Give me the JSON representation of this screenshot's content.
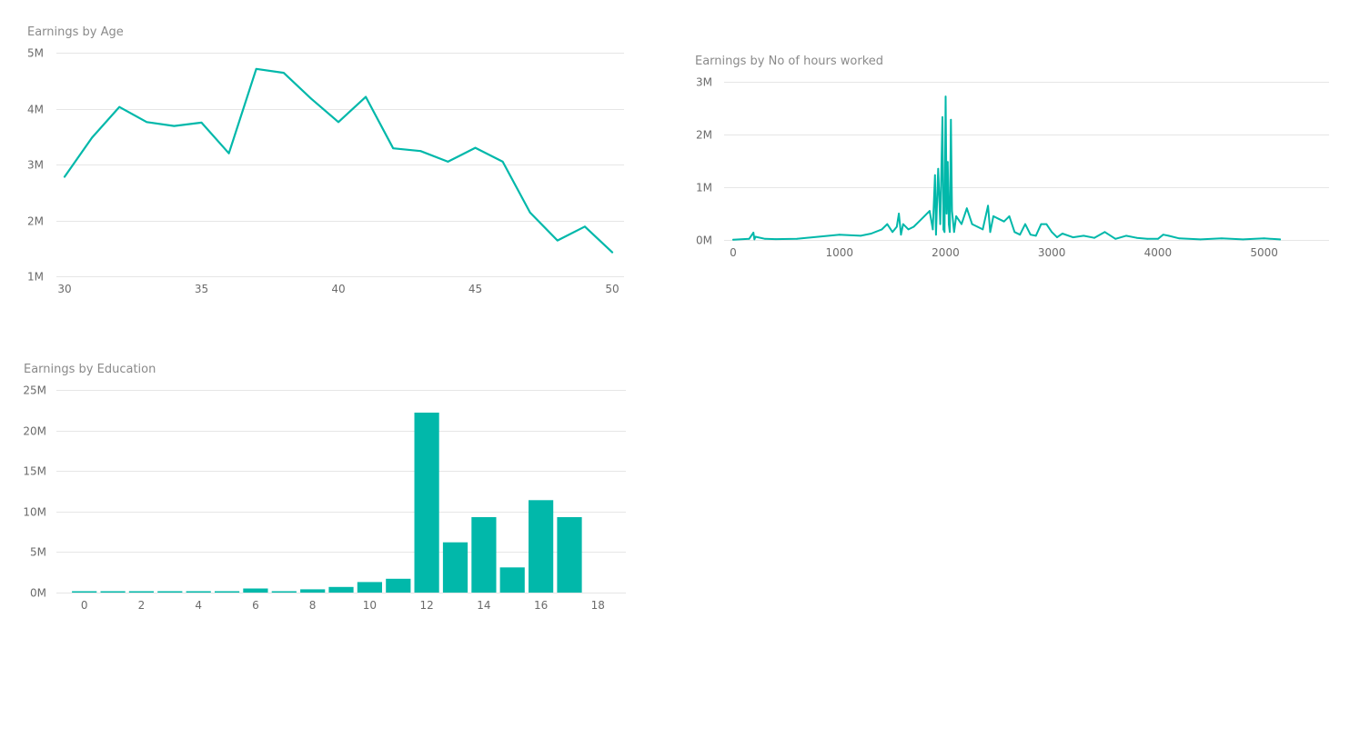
{
  "colors": {
    "series": "#01b8aa"
  },
  "chart_data": [
    {
      "type": "line",
      "title": "Earnings by Age",
      "xlabel": "",
      "ylabel": "",
      "xlim": [
        30,
        50
      ],
      "ylim": [
        1000000,
        5000000
      ],
      "x_ticks": [
        30,
        35,
        40,
        45,
        50
      ],
      "x_tick_labels": [
        "30",
        "35",
        "40",
        "45",
        "50"
      ],
      "y_ticks": [
        1000000,
        2000000,
        3000000,
        4000000,
        5000000
      ],
      "y_tick_labels": [
        "1M",
        "2M",
        "3M",
        "4M",
        "5M"
      ],
      "grid": true,
      "x": [
        30,
        31,
        32,
        33,
        34,
        35,
        36,
        37,
        38,
        39,
        40,
        41,
        42,
        43,
        44,
        45,
        46,
        47,
        48,
        49,
        50
      ],
      "series": [
        {
          "values": [
            2780000,
            3480000,
            4030000,
            3760000,
            3690000,
            3750000,
            3200000,
            4710000,
            4640000,
            4180000,
            3760000,
            4210000,
            3290000,
            3240000,
            3050000,
            3300000,
            3050000,
            2140000,
            1640000,
            1890000,
            1430000
          ]
        }
      ]
    },
    {
      "type": "line",
      "title": "Earnings by No of hours worked",
      "xlabel": "",
      "ylabel": "",
      "xlim": [
        0,
        5500
      ],
      "ylim": [
        0,
        3000000
      ],
      "x_ticks": [
        0,
        1000,
        2000,
        3000,
        4000,
        5000
      ],
      "x_tick_labels": [
        "0",
        "1000",
        "2000",
        "3000",
        "4000",
        "5000"
      ],
      "y_ticks": [
        0,
        1000000,
        2000000,
        3000000
      ],
      "y_tick_labels": [
        "0M",
        "1M",
        "2M",
        "3M"
      ],
      "grid": true,
      "x": [
        0,
        150,
        190,
        200,
        210,
        300,
        400,
        600,
        800,
        1000,
        1200,
        1300,
        1400,
        1450,
        1500,
        1540,
        1560,
        1580,
        1600,
        1650,
        1700,
        1750,
        1800,
        1850,
        1880,
        1900,
        1910,
        1930,
        1950,
        1970,
        1980,
        1990,
        2000,
        2010,
        2020,
        2030,
        2040,
        2050,
        2060,
        2080,
        2100,
        2150,
        2200,
        2250,
        2300,
        2350,
        2400,
        2420,
        2450,
        2500,
        2550,
        2600,
        2650,
        2700,
        2750,
        2800,
        2850,
        2900,
        2950,
        3000,
        3050,
        3100,
        3200,
        3300,
        3400,
        3500,
        3600,
        3700,
        3800,
        3900,
        4000,
        4050,
        4100,
        4200,
        4400,
        4600,
        4800,
        5000,
        5150
      ],
      "series": [
        {
          "values": [
            5000,
            20000,
            140000,
            10000,
            60000,
            20000,
            15000,
            20000,
            60000,
            100000,
            80000,
            120000,
            200000,
            300000,
            150000,
            250000,
            500000,
            100000,
            300000,
            200000,
            250000,
            350000,
            450000,
            550000,
            200000,
            1230000,
            100000,
            1350000,
            300000,
            2330000,
            200000,
            150000,
            2720000,
            500000,
            1480000,
            300000,
            150000,
            2280000,
            550000,
            150000,
            450000,
            300000,
            600000,
            300000,
            250000,
            200000,
            650000,
            150000,
            450000,
            400000,
            350000,
            450000,
            150000,
            100000,
            300000,
            100000,
            80000,
            300000,
            300000,
            150000,
            50000,
            120000,
            50000,
            80000,
            40000,
            150000,
            20000,
            80000,
            40000,
            20000,
            20000,
            100000,
            80000,
            30000,
            10000,
            30000,
            10000,
            30000,
            10000
          ]
        }
      ]
    },
    {
      "type": "bar",
      "title": "Earnings by Education",
      "xlabel": "",
      "ylabel": "",
      "xlim": [
        -0.5,
        18.5
      ],
      "ylim": [
        0,
        25000000
      ],
      "x_ticks": [
        0,
        2,
        4,
        6,
        8,
        10,
        12,
        14,
        16,
        18
      ],
      "x_tick_labels": [
        "0",
        "2",
        "4",
        "6",
        "8",
        "10",
        "12",
        "14",
        "16",
        "18"
      ],
      "y_ticks": [
        0,
        5000000,
        10000000,
        15000000,
        20000000,
        25000000
      ],
      "y_tick_labels": [
        "0M",
        "5M",
        "10M",
        "15M",
        "20M",
        "25M"
      ],
      "grid": true,
      "categories": [
        0,
        1,
        2,
        3,
        4,
        5,
        6,
        7,
        8,
        9,
        10,
        11,
        12,
        13,
        14,
        15,
        16,
        17
      ],
      "values": [
        100000,
        100000,
        100000,
        100000,
        100000,
        100000,
        500000,
        100000,
        400000,
        700000,
        1300000,
        1700000,
        22200000,
        6200000,
        9300000,
        3100000,
        11400000,
        9300000
      ]
    }
  ]
}
